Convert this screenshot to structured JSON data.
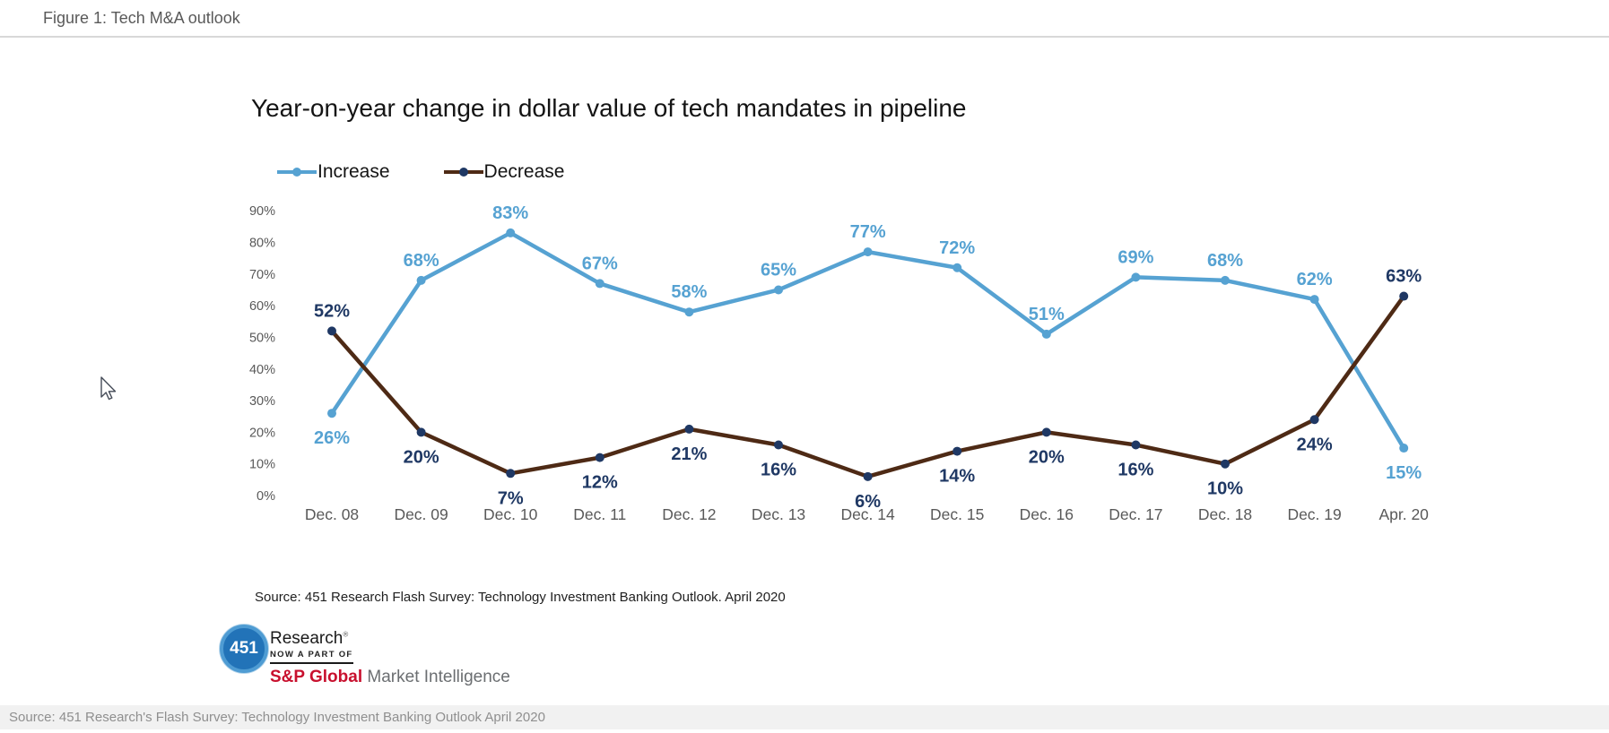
{
  "header": {
    "title": "Figure 1: Tech M&A outlook"
  },
  "chart_data": {
    "type": "line",
    "title": "Year-on-year change in dollar value of tech mandates in pipeline",
    "categories": [
      "Dec. 08",
      "Dec. 09",
      "Dec. 10",
      "Dec. 11",
      "Dec. 12",
      "Dec. 13",
      "Dec. 14",
      "Dec. 15",
      "Dec. 16",
      "Dec. 17",
      "Dec. 18",
      "Dec. 19",
      "Apr. 20"
    ],
    "series": [
      {
        "name": "Increase",
        "color": "#56a2d2",
        "marker_color": "#56a2d2",
        "label_color": "#56a2d2",
        "values": [
          26,
          68,
          83,
          67,
          58,
          65,
          77,
          72,
          51,
          69,
          68,
          62,
          15
        ],
        "label_position_default": "above",
        "label_position_overrides": {
          "0": "below",
          "12": "below"
        }
      },
      {
        "name": "Decrease",
        "color": "#4e2a15",
        "marker_color": "#1f3864",
        "label_color": "#1f3864",
        "values": [
          52,
          20,
          7,
          12,
          21,
          16,
          6,
          14,
          20,
          16,
          10,
          24,
          63
        ],
        "label_position_default": "below",
        "label_position_overrides": {
          "0": "above",
          "12": "above"
        }
      }
    ],
    "xlabel": "",
    "ylabel": "",
    "ylim": [
      0,
      90
    ],
    "ytick_values": [
      0,
      10,
      20,
      30,
      40,
      50,
      60,
      70,
      80,
      90
    ],
    "ytick_labels": [
      "0%",
      "10%",
      "20%",
      "30%",
      "40%",
      "50%",
      "60%",
      "70%",
      "80%",
      "90%"
    ],
    "grid": false,
    "data_labels": true,
    "legend_position": "top-left"
  },
  "source_note": "Source: 451 Research Flash Survey: Technology Investment Banking Outlook. April 2020",
  "logo": {
    "circle_text": "451",
    "brand": "Research",
    "trademark": "®",
    "tagline": "NOW A PART OF",
    "parent_brand": "S&P Global",
    "parent_suffix": "Market Intelligence"
  },
  "footer": {
    "text": "Source: 451 Research's Flash Survey: Technology Investment Banking Outlook April 2020"
  }
}
